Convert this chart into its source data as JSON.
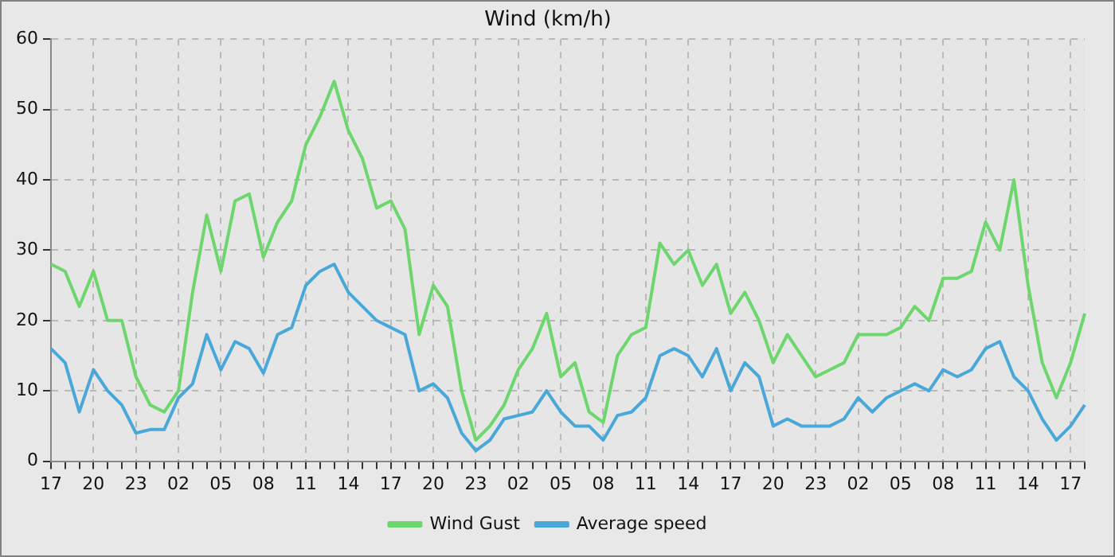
{
  "chart_data": {
    "type": "line",
    "title": "Wind (km/h)",
    "categories": [
      "17",
      null,
      null,
      "20",
      null,
      null,
      "23",
      null,
      null,
      "02",
      null,
      null,
      "05",
      null,
      null,
      "08",
      null,
      null,
      "11",
      null,
      null,
      "14",
      null,
      null,
      "17",
      null,
      null,
      "20",
      null,
      null,
      "23",
      null,
      null,
      "02",
      null,
      null,
      "05",
      null,
      null,
      "08",
      null,
      null,
      "11",
      null,
      null,
      "14",
      null,
      null,
      "17",
      null,
      null,
      "20",
      null,
      null,
      "23",
      null,
      null,
      "02",
      null,
      null,
      "05",
      null,
      null,
      "08",
      null,
      null,
      "11",
      null,
      null,
      "14",
      null,
      null,
      "17",
      null
    ],
    "ylim": [
      0,
      60
    ],
    "yticks": [
      0,
      10,
      20,
      30,
      40,
      50,
      60
    ],
    "grid": true,
    "legend": "bottom",
    "marker": "none",
    "line_style": "solid",
    "series": [
      {
        "name": "Wind Gust",
        "color": "#6dd66d",
        "values": [
          28,
          27,
          22,
          27,
          20,
          20,
          12,
          8,
          7,
          10,
          24,
          35,
          27,
          37,
          38,
          29,
          34,
          37,
          45,
          49,
          54,
          47,
          43,
          36,
          37,
          33,
          18,
          25,
          22,
          10,
          3,
          5,
          8,
          13,
          16,
          21,
          12,
          14,
          7,
          5.5,
          15,
          18,
          19,
          31,
          28,
          30,
          25,
          28,
          21,
          24,
          20,
          14,
          18,
          15,
          12,
          13,
          14,
          18,
          18,
          18,
          19,
          22,
          20,
          26,
          26,
          27,
          34,
          30,
          40,
          25,
          14,
          9,
          14,
          21
        ]
      },
      {
        "name": "Average speed",
        "color": "#4aa8d8",
        "values": [
          16,
          14,
          7,
          13,
          10,
          8,
          4,
          4.5,
          4.5,
          9,
          11,
          18,
          13,
          17,
          16,
          12.5,
          18,
          19,
          25,
          27,
          28,
          24,
          22,
          20,
          19,
          18,
          10,
          11,
          9,
          4,
          1.5,
          3,
          6,
          6.5,
          7,
          10,
          7,
          5,
          5,
          3,
          6.5,
          7,
          9,
          15,
          16,
          15,
          12,
          16,
          10,
          14,
          12,
          5,
          6,
          5,
          5,
          5,
          6,
          9,
          7,
          9,
          10,
          11,
          10,
          13,
          12,
          13,
          16,
          17,
          12,
          10,
          6,
          3,
          5,
          8
        ]
      }
    ]
  }
}
